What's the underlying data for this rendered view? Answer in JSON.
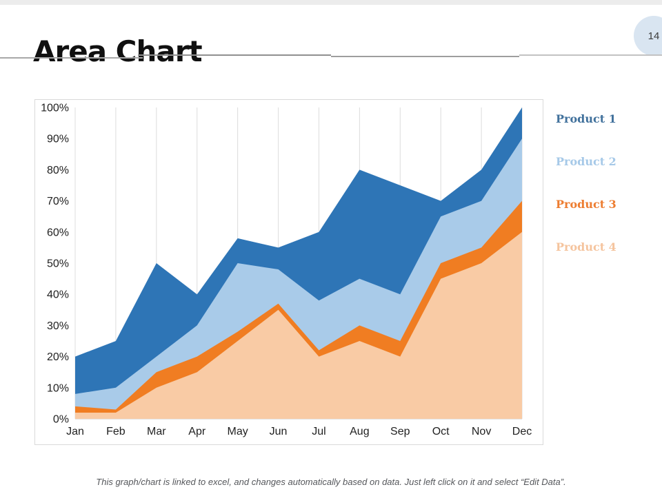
{
  "slide": {
    "title": "Area Chart",
    "page_number": "14",
    "footer": "This graph/chart is linked to excel, and changes automatically based on data. Just left click on it and select “Edit Data”."
  },
  "legend": {
    "position": "right",
    "items": [
      {
        "label": "Product 1",
        "color": "#41719C"
      },
      {
        "label": "Product 2",
        "color": "#A6C9E8"
      },
      {
        "label": "Product 3",
        "color": "#ED7D31"
      },
      {
        "label": "Product 4",
        "color": "#F5C49E"
      }
    ]
  },
  "chart_data": {
    "type": "area",
    "mode": "overlay",
    "title": "",
    "xlabel": "",
    "ylabel": "",
    "categories": [
      "Jan",
      "Feb",
      "Mar",
      "Apr",
      "May",
      "Jun",
      "Jul",
      "Aug",
      "Sep",
      "Oct",
      "Nov",
      "Dec"
    ],
    "series": [
      {
        "name": "Product 1",
        "color": "#2E75B6",
        "values": [
          20,
          25,
          50,
          40,
          58,
          55,
          60,
          80,
          75,
          70,
          80,
          100
        ]
      },
      {
        "name": "Product 2",
        "color": "#A9CBE9",
        "values": [
          8,
          10,
          20,
          30,
          50,
          48,
          38,
          45,
          40,
          65,
          70,
          90
        ]
      },
      {
        "name": "Product 3",
        "color": "#F07D22",
        "values": [
          4,
          3,
          15,
          20,
          28,
          37,
          22,
          30,
          25,
          50,
          55,
          70
        ]
      },
      {
        "name": "Product 4",
        "color": "#F9CBA5",
        "values": [
          2,
          2,
          10,
          15,
          25,
          35,
          20,
          25,
          20,
          45,
          50,
          60
        ]
      }
    ],
    "ylim": [
      0,
      100
    ],
    "ytick_step": 10,
    "ytick_suffix": "%",
    "grid": "vertical-only",
    "gridline_color": "#DCDCDC",
    "legend_position": "right"
  }
}
